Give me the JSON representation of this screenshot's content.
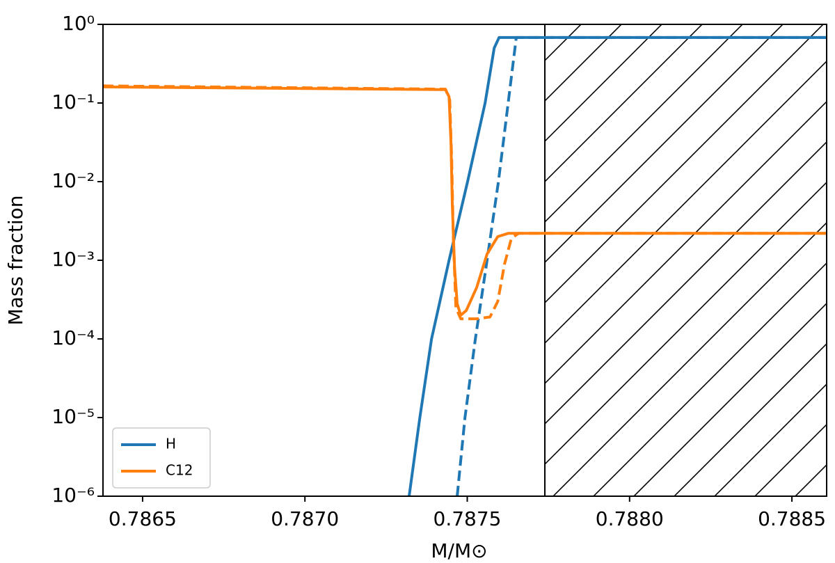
{
  "chart_data": {
    "type": "line",
    "xlabel": "M/M⊙",
    "ylabel": "Mass fraction",
    "yscale": "log",
    "xlim": [
      0.786378,
      0.788607
    ],
    "ylim": [
      1e-06,
      1
    ],
    "xticks": [
      0.7865,
      {
        "value": 0.787,
        "label": "0.7870"
      },
      0.7875,
      {
        "value": 0.788,
        "label": "0.7880"
      },
      0.7885
    ],
    "yticks": [
      {
        "value": 1e-06,
        "label": "10⁻⁶"
      },
      {
        "value": 1e-05,
        "label": "10⁻⁵"
      },
      {
        "value": 0.0001,
        "label": "10⁻⁴"
      },
      {
        "value": 0.001,
        "label": "10⁻³"
      },
      {
        "value": 0.01,
        "label": "10⁻²"
      },
      {
        "value": 0.1,
        "label": "10⁻¹"
      },
      {
        "value": 1,
        "label": "10⁰"
      }
    ],
    "hatch_start": 0.787739,
    "legend": "lower left",
    "series": [
      {
        "name": "H",
        "color": "#1f77b4",
        "lines": [
          {
            "style": "solid",
            "x": [
              0.787321,
              0.787354,
              0.78739,
              0.787444,
              0.787501,
              0.787555,
              0.787583,
              0.787598,
              0.788607
            ],
            "values": [
              1e-06,
              1e-05,
              0.0001,
              0.001,
              0.01,
              0.1,
              0.5,
              0.68,
              0.68
            ]
          },
          {
            "style": "dashed",
            "x": [
              0.787469,
              0.787493,
              0.787525,
              0.787561,
              0.787596,
              0.787626,
              0.787651,
              0.788607
            ],
            "values": [
              1e-06,
              1e-05,
              0.0001,
              0.001,
              0.01,
              0.1,
              0.68,
              0.68
            ]
          }
        ]
      },
      {
        "name": "C12",
        "color": "#ff7f0e",
        "lines": [
          {
            "style": "solid",
            "x": [
              0.786378,
              0.787433,
              0.787444,
              0.78745,
              0.787454,
              0.787461,
              0.787469,
              0.78748,
              0.787497,
              0.787529,
              0.787561,
              0.787594,
              0.787626,
              0.788607
            ],
            "values": [
              0.16,
              0.148,
              0.12,
              0.03,
              0.005,
              0.0008,
              0.00028,
              0.0002,
              0.00023,
              0.00045,
              0.0012,
              0.002,
              0.0022,
              0.0022
            ]
          },
          {
            "style": "dashed",
            "x": [
              0.786378,
              0.787433,
              0.787446,
              0.787452,
              0.787457,
              0.787465,
              0.78748,
              0.787529,
              0.78757,
              0.787594,
              0.787615,
              0.787636,
              0.787658,
              0.788607
            ],
            "values": [
              0.165,
              0.15,
              0.11,
              0.02,
              0.002,
              0.00025,
              0.00018,
              0.00018,
              0.00019,
              0.0003,
              0.0009,
              0.0019,
              0.0022,
              0.0022
            ]
          }
        ]
      }
    ]
  }
}
